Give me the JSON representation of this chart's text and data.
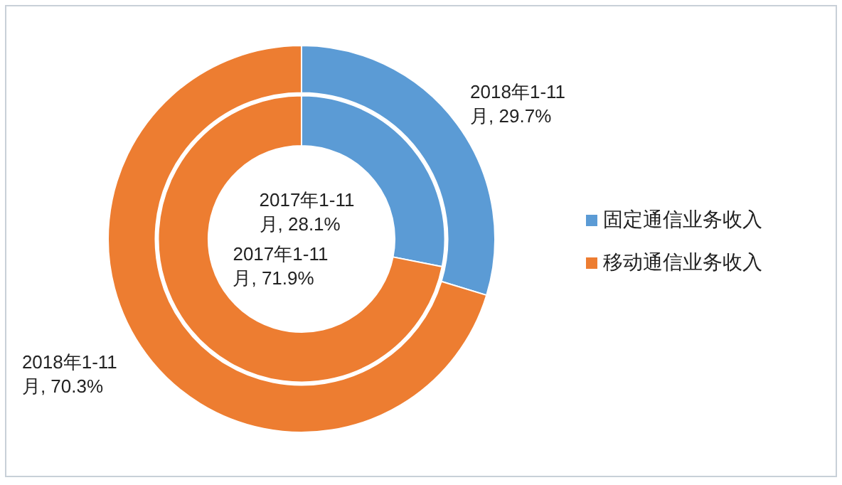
{
  "chart_data": {
    "type": "donut",
    "categories": [
      "固定通信业务收入",
      "移动通信业务收入"
    ],
    "colors": [
      "#5b9bd5",
      "#ed7d31"
    ],
    "series": [
      {
        "values": [
          28.1,
          71.9
        ],
        "value_labels": [
          "2017年1-11月, 28.1%",
          "2017年1-11月, 71.9%"
        ]
      },
      {
        "values": [
          29.7,
          70.3
        ],
        "value_labels": [
          "2018年1-11月, 29.7%",
          "2018年1-11月, 70.3%"
        ]
      }
    ],
    "legend": "right"
  }
}
